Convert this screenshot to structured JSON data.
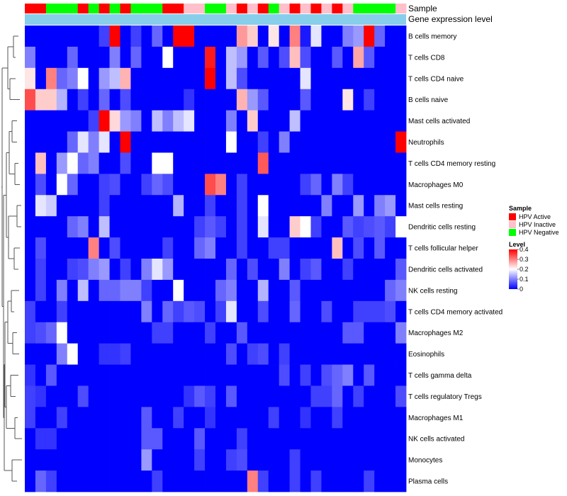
{
  "chart_data": {
    "type": "heatmap",
    "annotation_labels": [
      "Sample",
      "Gene expression level"
    ],
    "sample_legend": {
      "title": "Sample",
      "entries": [
        {
          "name": "HPV Active",
          "color": "#ff0000"
        },
        {
          "name": "HPV Inactive",
          "color": "#ffc0cb"
        },
        {
          "name": "HPV Negative",
          "color": "#00ff00"
        }
      ]
    },
    "level_legend": {
      "title": "Level",
      "ticks": [
        "0.4",
        "0.3",
        "0.2",
        "0.1",
        "0"
      ],
      "range": [
        0,
        0.4
      ]
    },
    "gene_expression_level_color": "#87ceeb",
    "colors": {
      "low": "#0000ff",
      "mid": "#ffffff",
      "high": "#ff0000"
    },
    "samples": [
      "A",
      "A",
      "N",
      "N",
      "N",
      "A",
      "N",
      "A",
      "N",
      "A",
      "N",
      "N",
      "N",
      "A",
      "A",
      "I",
      "I",
      "N",
      "N",
      "I",
      "A",
      "I",
      "A",
      "N",
      "I",
      "A",
      "I",
      "A",
      "I",
      "A",
      "I",
      "N",
      "N",
      "N",
      "N",
      "I"
    ],
    "rows": [
      "B cells memory",
      "T cells CD8",
      "T cells CD4 naive",
      "B cells naive",
      "Mast cells activated",
      "Neutrophils",
      "T cells CD4 memory resting",
      "Macrophages M0",
      "Mast cells resting",
      "Dendritic cells resting",
      "T cells follicular helper",
      "Dendritic cells activated",
      "NK cells resting",
      "T cells CD4 memory activated",
      "Macrophages M2",
      "Eosinophils",
      "T cells gamma delta",
      "T cells regulatory  Tregs",
      "Macrophages M1",
      "NK cells activated",
      "Monocytes",
      "Plasma cells"
    ],
    "values": [
      [
        0.0,
        0.0,
        0.0,
        0.0,
        0.0,
        0.0,
        0.0,
        0.05,
        0.4,
        0.0,
        0.05,
        0.0,
        0.08,
        0.0,
        0.4,
        0.4,
        0.0,
        0.0,
        0.0,
        0.0,
        0.28,
        0.24,
        0.0,
        0.22,
        0.0,
        0.3,
        0.02,
        0.18,
        0.0,
        0.0,
        0.1,
        0.12,
        0.4,
        0.08,
        0.0,
        0.0
      ],
      [
        0.1,
        0.0,
        0.0,
        0.0,
        0.08,
        0.0,
        0.0,
        0.0,
        0.1,
        0.0,
        0.08,
        0.0,
        0.0,
        0.2,
        0.0,
        0.0,
        0.0,
        0.38,
        0.0,
        0.15,
        0.12,
        0.0,
        0.07,
        0.0,
        0.06,
        0.25,
        0.06,
        0.0,
        0.0,
        0.07,
        0.0,
        0.27,
        0.07,
        0.0,
        0.0,
        0.0
      ],
      [
        0.22,
        0.0,
        0.3,
        0.08,
        0.1,
        0.2,
        0.0,
        0.12,
        0.15,
        0.26,
        0.0,
        0.0,
        0.0,
        0.0,
        0.0,
        0.0,
        0.0,
        0.4,
        0.0,
        0.15,
        0.06,
        0.0,
        0.0,
        0.0,
        0.0,
        0.0,
        0.18,
        0.0,
        0.0,
        0.0,
        0.0,
        0.0,
        0.0,
        0.0,
        0.0,
        0.0
      ],
      [
        0.34,
        0.24,
        0.24,
        0.14,
        0.0,
        0.05,
        0.0,
        0.08,
        0.0,
        0.06,
        0.0,
        0.0,
        0.0,
        0.0,
        0.0,
        0.04,
        0.0,
        0.0,
        0.0,
        0.0,
        0.26,
        0.12,
        0.07,
        0.0,
        0.0,
        0.0,
        0.07,
        0.0,
        0.0,
        0.0,
        0.22,
        0.0,
        0.05,
        0.0,
        0.0,
        0.0
      ],
      [
        0.0,
        0.0,
        0.0,
        0.0,
        0.0,
        0.0,
        0.05,
        0.4,
        0.23,
        0.12,
        0.1,
        0.0,
        0.15,
        0.1,
        0.15,
        0.18,
        0.0,
        0.0,
        0.0,
        0.1,
        0.0,
        0.24,
        0.0,
        0.0,
        0.0,
        0.15,
        0.0,
        0.0,
        0.0,
        0.0,
        0.0,
        0.0,
        0.0,
        0.0,
        0.0,
        0.0
      ],
      [
        0.0,
        0.0,
        0.0,
        0.0,
        0.08,
        0.18,
        0.1,
        0.18,
        0.0,
        0.4,
        0.0,
        0.0,
        0.0,
        0.0,
        0.0,
        0.0,
        0.0,
        0.0,
        0.0,
        0.2,
        0.0,
        0.0,
        0.05,
        0.0,
        0.1,
        0.0,
        0.0,
        0.0,
        0.0,
        0.0,
        0.0,
        0.0,
        0.0,
        0.0,
        0.0,
        0.4
      ],
      [
        0.0,
        0.25,
        0.0,
        0.12,
        0.2,
        0.08,
        0.1,
        0.0,
        0.0,
        0.06,
        0.0,
        0.0,
        0.2,
        0.2,
        0.0,
        0.0,
        0.0,
        0.0,
        0.0,
        0.0,
        0.0,
        0.0,
        0.33,
        0.0,
        0.0,
        0.0,
        0.0,
        0.0,
        0.0,
        0.0,
        0.0,
        0.0,
        0.0,
        0.0,
        0.0,
        0.0
      ],
      [
        0.0,
        0.06,
        0.0,
        0.2,
        0.08,
        0.0,
        0.0,
        0.05,
        0.06,
        0.0,
        0.0,
        0.05,
        0.08,
        0.06,
        0.0,
        0.0,
        0.0,
        0.34,
        0.3,
        0.0,
        0.05,
        0.0,
        0.0,
        0.0,
        0.0,
        0.0,
        0.05,
        0.08,
        0.0,
        0.1,
        0.05,
        0.0,
        0.0,
        0.0,
        0.0,
        0.0
      ],
      [
        0.0,
        0.18,
        0.16,
        0.0,
        0.0,
        0.0,
        0.0,
        0.05,
        0.0,
        0.0,
        0.0,
        0.0,
        0.0,
        0.0,
        0.14,
        0.0,
        0.0,
        0.05,
        0.0,
        0.0,
        0.05,
        0.0,
        0.2,
        0.0,
        0.0,
        0.0,
        0.0,
        0.0,
        0.1,
        0.0,
        0.0,
        0.12,
        0.0,
        0.1,
        0.12,
        0.0
      ],
      [
        0.0,
        0.0,
        0.0,
        0.0,
        0.08,
        0.1,
        0.0,
        0.15,
        0.0,
        0.0,
        0.0,
        0.0,
        0.0,
        0.0,
        0.0,
        0.0,
        0.05,
        0.07,
        0.05,
        0.0,
        0.05,
        0.0,
        0.18,
        0.0,
        0.0,
        0.24,
        0.2,
        0.05,
        0.0,
        0.0,
        0.07,
        0.05,
        0.06,
        0.07,
        0.05,
        0.2
      ],
      [
        0.0,
        0.06,
        0.0,
        0.0,
        0.0,
        0.0,
        0.3,
        0.0,
        0.06,
        0.0,
        0.0,
        0.0,
        0.0,
        0.05,
        0.0,
        0.0,
        0.08,
        0.1,
        0.0,
        0.0,
        0.05,
        0.0,
        0.0,
        0.05,
        0.05,
        0.0,
        0.0,
        0.0,
        0.0,
        0.25,
        0.0,
        0.06,
        0.0,
        0.07,
        0.0,
        0.0
      ],
      [
        0.0,
        0.05,
        0.0,
        0.0,
        0.05,
        0.06,
        0.1,
        0.12,
        0.0,
        0.05,
        0.0,
        0.1,
        0.18,
        0.12,
        0.0,
        0.0,
        0.0,
        0.0,
        0.0,
        0.08,
        0.0,
        0.06,
        0.0,
        0.0,
        0.1,
        0.0,
        0.05,
        0.07,
        0.0,
        0.0,
        0.05,
        0.0,
        0.0,
        0.0,
        0.0,
        0.07
      ],
      [
        0.0,
        0.05,
        0.0,
        0.1,
        0.0,
        0.15,
        0.0,
        0.08,
        0.08,
        0.1,
        0.1,
        0.05,
        0.0,
        0.0,
        0.2,
        0.0,
        0.0,
        0.0,
        0.08,
        0.1,
        0.0,
        0.0,
        0.14,
        0.0,
        0.0,
        0.07,
        0.0,
        0.0,
        0.0,
        0.0,
        0.0,
        0.0,
        0.0,
        0.0,
        0.08,
        0.1
      ],
      [
        0.05,
        0.0,
        0.0,
        0.05,
        0.0,
        0.0,
        0.0,
        0.0,
        0.0,
        0.0,
        0.0,
        0.1,
        0.0,
        0.08,
        0.05,
        0.07,
        0.06,
        0.0,
        0.05,
        0.18,
        0.0,
        0.0,
        0.06,
        0.0,
        0.0,
        0.08,
        0.0,
        0.0,
        0.06,
        0.0,
        0.0,
        0.05,
        0.05,
        0.05,
        0.06,
        0.0
      ],
      [
        0.05,
        0.06,
        0.08,
        0.2,
        0.0,
        0.0,
        0.0,
        0.0,
        0.0,
        0.0,
        0.0,
        0.0,
        0.05,
        0.05,
        0.0,
        0.0,
        0.0,
        0.05,
        0.0,
        0.0,
        0.07,
        0.0,
        0.0,
        0.0,
        0.0,
        0.0,
        0.0,
        0.0,
        0.0,
        0.0,
        0.07,
        0.07,
        0.0,
        0.0,
        0.0,
        0.1
      ],
      [
        0.0,
        0.0,
        0.0,
        0.1,
        0.2,
        0.0,
        0.0,
        0.04,
        0.04,
        0.05,
        0.0,
        0.0,
        0.0,
        0.0,
        0.0,
        0.0,
        0.0,
        0.0,
        0.0,
        0.06,
        0.0,
        0.05,
        0.06,
        0.0,
        0.05,
        0.0,
        0.0,
        0.0,
        0.0,
        0.0,
        0.0,
        0.0,
        0.0,
        0.0,
        0.0,
        0.0
      ],
      [
        0.04,
        0.0,
        0.07,
        0.0,
        0.0,
        0.0,
        0.0,
        0.0,
        0.0,
        0.0,
        0.0,
        0.0,
        0.0,
        0.0,
        0.0,
        0.0,
        0.0,
        0.0,
        0.0,
        0.0,
        0.0,
        0.0,
        0.0,
        0.0,
        0.06,
        0.0,
        0.05,
        0.0,
        0.06,
        0.08,
        0.1,
        0.0,
        0.07,
        0.0,
        0.0,
        0.0
      ],
      [
        0.05,
        0.04,
        0.0,
        0.0,
        0.0,
        0.06,
        0.0,
        0.0,
        0.0,
        0.0,
        0.0,
        0.0,
        0.0,
        0.0,
        0.0,
        0.04,
        0.07,
        0.05,
        0.0,
        0.07,
        0.0,
        0.0,
        0.0,
        0.0,
        0.0,
        0.0,
        0.0,
        0.05,
        0.05,
        0.08,
        0.0,
        0.05,
        0.0,
        0.0,
        0.0,
        0.06
      ],
      [
        0.05,
        0.0,
        0.0,
        0.05,
        0.0,
        0.0,
        0.0,
        0.0,
        0.0,
        0.0,
        0.0,
        0.07,
        0.0,
        0.0,
        0.05,
        0.0,
        0.0,
        0.04,
        0.0,
        0.0,
        0.0,
        0.0,
        0.0,
        0.05,
        0.0,
        0.0,
        0.04,
        0.0,
        0.0,
        0.05,
        0.0,
        0.0,
        0.0,
        0.0,
        0.0,
        0.0
      ],
      [
        0.0,
        0.04,
        0.04,
        0.0,
        0.0,
        0.0,
        0.0,
        0.0,
        0.0,
        0.0,
        0.0,
        0.07,
        0.07,
        0.0,
        0.0,
        0.0,
        0.07,
        0.0,
        0.0,
        0.0,
        0.05,
        0.0,
        0.0,
        0.0,
        0.0,
        0.0,
        0.0,
        0.0,
        0.0,
        0.0,
        0.0,
        0.0,
        0.0,
        0.0,
        0.0,
        0.0
      ],
      [
        0.0,
        0.0,
        0.0,
        0.0,
        0.0,
        0.0,
        0.0,
        0.0,
        0.0,
        0.0,
        0.0,
        0.12,
        0.0,
        0.0,
        0.0,
        0.0,
        0.05,
        0.0,
        0.0,
        0.05,
        0.06,
        0.0,
        0.0,
        0.0,
        0.0,
        0.05,
        0.0,
        0.0,
        0.0,
        0.0,
        0.0,
        0.0,
        0.0,
        0.0,
        0.0,
        0.0
      ],
      [
        0.0,
        0.08,
        0.05,
        0.0,
        0.0,
        0.0,
        0.0,
        0.0,
        0.0,
        0.0,
        0.0,
        0.0,
        0.05,
        0.0,
        0.0,
        0.0,
        0.0,
        0.0,
        0.0,
        0.0,
        0.0,
        0.3,
        0.05,
        0.0,
        0.0,
        0.05,
        0.0,
        0.05,
        0.0,
        0.0,
        0.0,
        0.0,
        0.05,
        0.0,
        0.0,
        0.0
      ]
    ]
  }
}
